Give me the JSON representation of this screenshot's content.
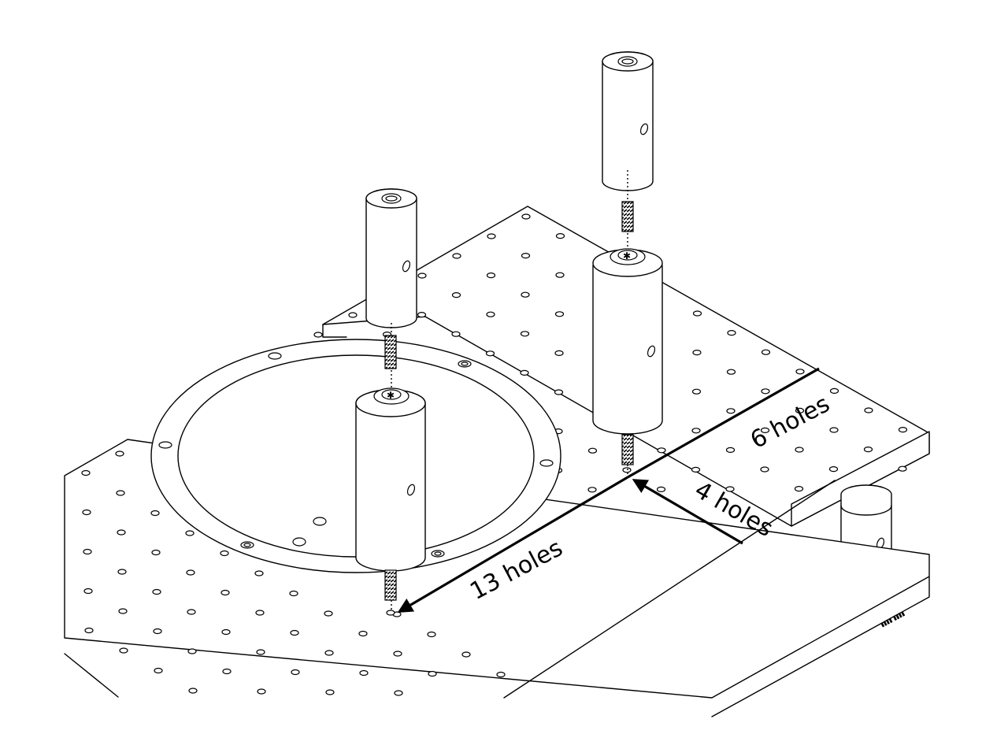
{
  "labels": {
    "dim_long": "13 holes",
    "dim_upper": "6 holes",
    "dim_short": "4 holes"
  },
  "colors": {
    "line": "#000000",
    "background": "#ffffff"
  }
}
